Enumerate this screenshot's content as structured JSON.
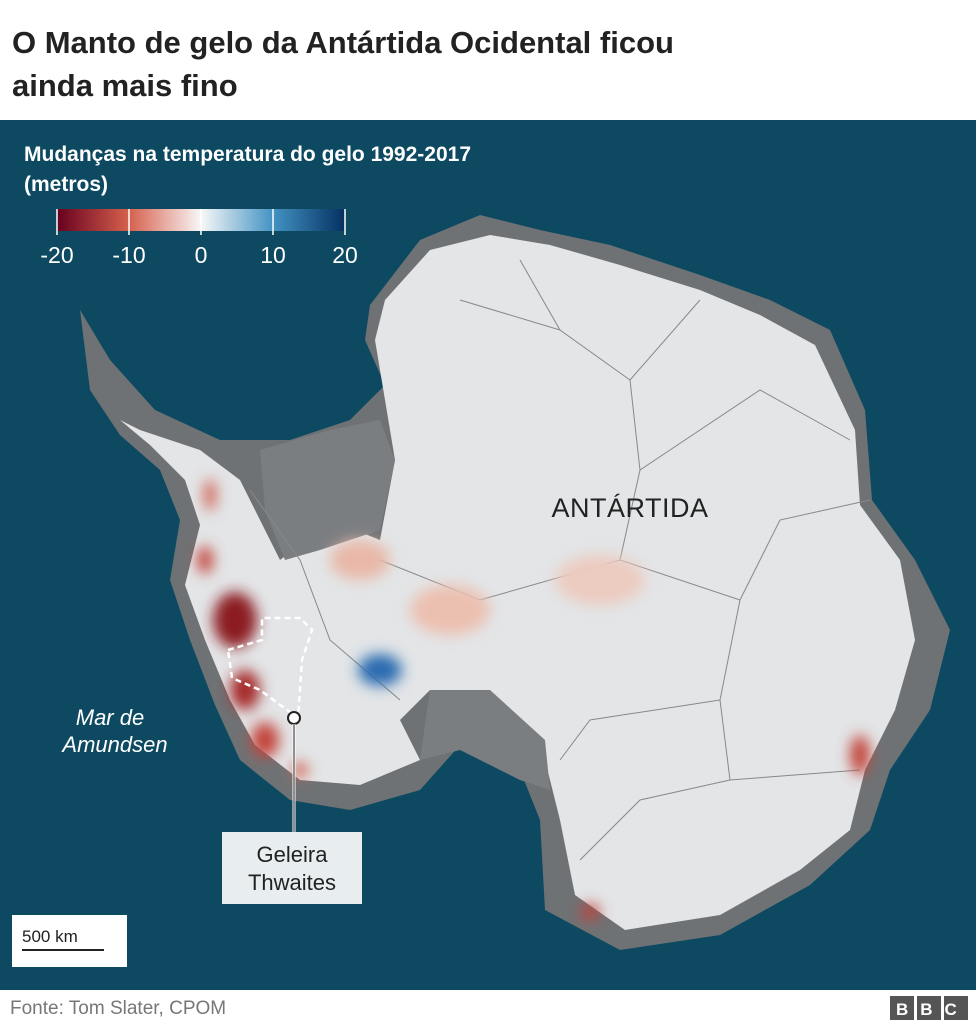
{
  "header": {
    "title": [
      "O Manto de gelo da Antártida Ocidental ficou",
      "ainda mais fino"
    ]
  },
  "legend": {
    "title": [
      "Mudanças na temperatura do gelo 1992-2017",
      "(metros)"
    ],
    "ticks": [
      -20,
      -10,
      0,
      10,
      20
    ]
  },
  "map": {
    "region_label": "ANTÁRTIDA",
    "sea_label": [
      "Mar de",
      "Amundsen"
    ],
    "glacier_label": [
      "Geleira",
      "Thwaites"
    ],
    "scale_bar": "500 km"
  },
  "footer": {
    "source": "Fonte: Tom Slater, CPOM",
    "logo": "BBC"
  }
}
